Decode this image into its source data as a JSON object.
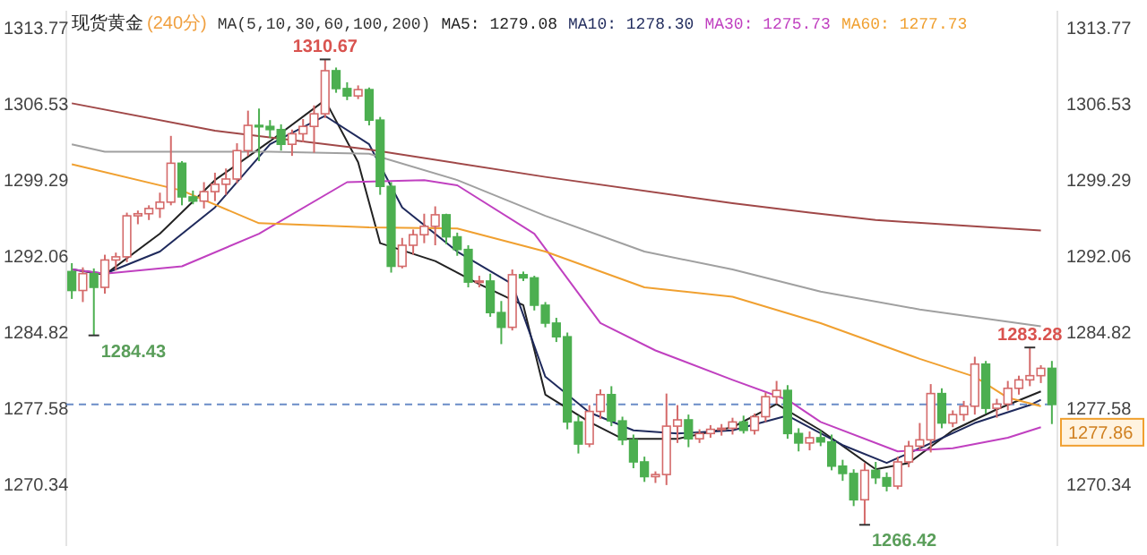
{
  "chart_data": {
    "type": "candlestick",
    "title": "现货黄金",
    "subtitle": "(240分)",
    "legend_title": "MA(5,10,30,60,100,200)",
    "legend": "top",
    "categories": [
      null,
      null,
      null,
      null,
      null,
      null,
      null,
      null,
      null,
      null,
      null,
      null,
      null,
      null,
      null,
      null,
      null,
      null,
      null,
      null,
      null,
      null,
      null,
      null,
      null,
      null,
      null,
      null,
      null,
      null,
      null,
      null,
      null,
      null,
      null,
      null,
      null,
      null,
      null,
      null,
      null,
      null,
      null,
      null,
      null,
      null,
      null,
      null,
      null,
      null,
      null,
      null,
      null,
      null,
      null,
      null,
      null,
      null,
      null,
      null,
      null,
      null,
      null,
      null,
      null,
      null,
      null,
      null,
      null,
      null,
      null,
      null,
      null,
      null,
      null,
      null,
      null,
      null,
      null,
      null,
      null,
      null,
      null,
      null,
      null,
      null,
      null,
      null,
      null,
      null
    ],
    "ohlc": [
      [
        1290.5,
        1291.3,
        1287.9,
        1288.7
      ],
      [
        1288.7,
        1290.9,
        1287.6,
        1290.3
      ],
      [
        1290.3,
        1290.8,
        1284.43,
        1289.0
      ],
      [
        1289.0,
        1292.1,
        1288.4,
        1291.6
      ],
      [
        1291.6,
        1292.3,
        1290.6,
        1291.9
      ],
      [
        1291.9,
        1296.1,
        1291.4,
        1295.8
      ],
      [
        1295.8,
        1296.3,
        1295.0,
        1296.0
      ],
      [
        1296.0,
        1296.8,
        1295.4,
        1296.5
      ],
      [
        1296.5,
        1298.0,
        1295.6,
        1297.1
      ],
      [
        1297.1,
        1303.4,
        1296.8,
        1300.8
      ],
      [
        1300.8,
        1301.0,
        1296.8,
        1297.6
      ],
      [
        1297.6,
        1298.2,
        1296.9,
        1297.2
      ],
      [
        1297.2,
        1299.0,
        1296.5,
        1298.1
      ],
      [
        1298.1,
        1299.9,
        1297.2,
        1298.8
      ],
      [
        1298.8,
        1300.3,
        1297.8,
        1299.3
      ],
      [
        1299.3,
        1302.7,
        1298.9,
        1302.0
      ],
      [
        1302.0,
        1305.8,
        1301.5,
        1304.4
      ],
      [
        1304.4,
        1306.0,
        1301.0,
        1304.3
      ],
      [
        1304.3,
        1304.9,
        1303.2,
        1304.0
      ],
      [
        1304.0,
        1304.5,
        1302.0,
        1302.6
      ],
      [
        1302.6,
        1304.0,
        1301.5,
        1303.6
      ],
      [
        1303.6,
        1305.0,
        1302.8,
        1304.3
      ],
      [
        1304.3,
        1306.3,
        1301.8,
        1305.5
      ],
      [
        1305.5,
        1310.67,
        1305.1,
        1309.6
      ],
      [
        1309.6,
        1309.9,
        1307.5,
        1307.9
      ],
      [
        1307.9,
        1308.5,
        1306.8,
        1307.2
      ],
      [
        1307.2,
        1308.2,
        1306.9,
        1307.8
      ],
      [
        1307.8,
        1308.0,
        1304.4,
        1304.9
      ],
      [
        1304.9,
        1305.2,
        1297.8,
        1298.6
      ],
      [
        1298.6,
        1299.0,
        1290.4,
        1291.0
      ],
      [
        1291.0,
        1293.7,
        1290.8,
        1293.0
      ],
      [
        1293.0,
        1294.5,
        1292.1,
        1294.0
      ],
      [
        1294.0,
        1296.0,
        1293.2,
        1294.8
      ],
      [
        1294.8,
        1296.7,
        1293.0,
        1295.9
      ],
      [
        1295.9,
        1296.0,
        1293.1,
        1293.8
      ],
      [
        1293.8,
        1294.2,
        1292.0,
        1292.6
      ],
      [
        1292.6,
        1293.0,
        1289.0,
        1289.5
      ],
      [
        1289.5,
        1290.1,
        1289.0,
        1289.6
      ],
      [
        1289.6,
        1290.3,
        1286.2,
        1286.6
      ],
      [
        1286.6,
        1287.7,
        1283.6,
        1285.2
      ],
      [
        1285.2,
        1290.7,
        1284.9,
        1290.2
      ],
      [
        1290.2,
        1290.5,
        1289.6,
        1289.9
      ],
      [
        1289.9,
        1290.1,
        1286.8,
        1287.3
      ],
      [
        1287.3,
        1287.6,
        1285.2,
        1285.6
      ],
      [
        1285.6,
        1286.1,
        1283.8,
        1284.3
      ],
      [
        1284.3,
        1284.7,
        1275.5,
        1276.2
      ],
      [
        1276.2,
        1276.8,
        1273.2,
        1274.1
      ],
      [
        1274.1,
        1277.8,
        1273.8,
        1277.2
      ],
      [
        1277.2,
        1279.3,
        1276.5,
        1278.8
      ],
      [
        1278.8,
        1279.6,
        1275.8,
        1276.3
      ],
      [
        1276.3,
        1276.7,
        1274.0,
        1274.5
      ],
      [
        1274.5,
        1275.0,
        1271.8,
        1272.4
      ],
      [
        1272.4,
        1272.9,
        1270.5,
        1271.0
      ],
      [
        1271.0,
        1271.5,
        1270.4,
        1271.2
      ],
      [
        1271.2,
        1278.9,
        1270.2,
        1275.8
      ],
      [
        1275.8,
        1277.8,
        1274.2,
        1276.4
      ],
      [
        1276.4,
        1276.9,
        1273.8,
        1274.6
      ],
      [
        1274.6,
        1275.5,
        1274.2,
        1275.1
      ],
      [
        1275.1,
        1275.9,
        1274.7,
        1275.5
      ],
      [
        1275.5,
        1276.0,
        1274.9,
        1275.6
      ],
      [
        1275.6,
        1276.6,
        1275.0,
        1276.2
      ],
      [
        1276.2,
        1276.8,
        1275.1,
        1275.4
      ],
      [
        1275.4,
        1277.0,
        1275.0,
        1276.7
      ],
      [
        1276.7,
        1279.0,
        1276.2,
        1278.6
      ],
      [
        1278.6,
        1280.1,
        1277.9,
        1279.2
      ],
      [
        1279.2,
        1279.7,
        1274.6,
        1275.1
      ],
      [
        1275.1,
        1275.6,
        1273.4,
        1274.2
      ],
      [
        1274.2,
        1275.3,
        1273.5,
        1274.7
      ],
      [
        1274.7,
        1275.4,
        1273.9,
        1274.3
      ],
      [
        1274.3,
        1275.0,
        1271.6,
        1272.0
      ],
      [
        1272.0,
        1272.6,
        1270.6,
        1271.3
      ],
      [
        1271.3,
        1271.7,
        1268.2,
        1268.8
      ],
      [
        1268.8,
        1272.3,
        1266.42,
        1271.6
      ],
      [
        1271.6,
        1272.4,
        1270.3,
        1270.9
      ],
      [
        1270.9,
        1271.4,
        1269.6,
        1270.1
      ],
      [
        1270.1,
        1272.9,
        1269.8,
        1272.4
      ],
      [
        1272.4,
        1274.4,
        1271.9,
        1273.9
      ],
      [
        1273.9,
        1276.1,
        1273.5,
        1274.5
      ],
      [
        1274.5,
        1279.8,
        1273.3,
        1278.9
      ],
      [
        1278.9,
        1279.4,
        1275.6,
        1276.1
      ],
      [
        1276.1,
        1277.3,
        1275.7,
        1276.9
      ],
      [
        1276.9,
        1278.2,
        1276.3,
        1277.7
      ],
      [
        1277.7,
        1282.4,
        1276.9,
        1281.7
      ],
      [
        1281.7,
        1282.0,
        1277.0,
        1277.5
      ],
      [
        1277.5,
        1278.4,
        1276.6,
        1277.9
      ],
      [
        1277.9,
        1280.1,
        1277.3,
        1279.4
      ],
      [
        1279.4,
        1280.6,
        1278.8,
        1280.2
      ],
      [
        1280.2,
        1283.28,
        1279.6,
        1280.6
      ],
      [
        1280.6,
        1281.6,
        1279.9,
        1281.3
      ],
      [
        1281.3,
        1282.0,
        1276.0,
        1277.86
      ]
    ],
    "series": [
      {
        "type": "line",
        "name": "MA5: 1279.08",
        "color": "#222222",
        "values": [
          1290.7,
          null,
          null,
          1290.2,
          null,
          null,
          null,
          null,
          1294.1,
          null,
          null,
          null,
          null,
          1299.2,
          null,
          null,
          null,
          null,
          1302.9,
          null,
          null,
          null,
          null,
          1306.8,
          null,
          null,
          1300.9,
          null,
          1293.2,
          null,
          null,
          null,
          null,
          1291.5,
          null,
          null,
          null,
          1289.3,
          null,
          null,
          null,
          1287.3,
          null,
          1278.8,
          null,
          null,
          null,
          1276.2,
          null,
          null,
          1274.6,
          null,
          null,
          null,
          null,
          1274.6,
          null,
          null,
          null,
          null,
          1275.7,
          null,
          null,
          null,
          1277.9,
          null,
          null,
          null,
          1275.4,
          null,
          null,
          null,
          null,
          1271.7,
          null,
          null,
          1272.3,
          null,
          null,
          null,
          1275.4,
          null,
          null,
          null,
          1277.4,
          null,
          null,
          null,
          1279.1,
          null
        ]
      },
      {
        "type": "line",
        "name": "MA10: 1278.30",
        "color": "#1f2a5c",
        "values": [
          1290.7,
          null,
          null,
          1290.3,
          null,
          null,
          null,
          null,
          1292.4,
          null,
          null,
          null,
          null,
          1296.6,
          null,
          null,
          null,
          null,
          1302.6,
          null,
          null,
          null,
          null,
          1305.3,
          null,
          null,
          null,
          1302.6,
          null,
          null,
          1296.6,
          null,
          null,
          null,
          null,
          1292.4,
          null,
          null,
          null,
          null,
          1289.3,
          null,
          null,
          1280.5,
          null,
          null,
          null,
          1277.1,
          null,
          null,
          null,
          1275.4,
          null,
          null,
          null,
          1275.1,
          null,
          null,
          null,
          null,
          1275.4,
          null,
          null,
          null,
          null,
          1276.8,
          null,
          null,
          null,
          null,
          1274.0,
          null,
          null,
          null,
          1272.3,
          null,
          null,
          1273.7,
          null,
          null,
          null,
          null,
          1276.1,
          null,
          null,
          null,
          null,
          1277.8,
          1278.3,
          null
        ]
      },
      {
        "type": "line",
        "name": "MA30: 1275.73",
        "color": "#c040c0",
        "values": [
          1290.7,
          null,
          null,
          1290.3,
          null,
          null,
          null,
          null,
          null,
          null,
          1291.0,
          null,
          null,
          null,
          null,
          null,
          null,
          1294.1,
          null,
          null,
          null,
          null,
          null,
          null,
          null,
          1299.0,
          null,
          null,
          null,
          null,
          null,
          null,
          1299.2,
          null,
          null,
          1298.7,
          null,
          null,
          null,
          null,
          null,
          null,
          1294.1,
          null,
          null,
          null,
          null,
          null,
          1285.6,
          null,
          null,
          null,
          null,
          1283.0,
          null,
          null,
          null,
          null,
          null,
          null,
          1280.2,
          null,
          null,
          null,
          null,
          1278.3,
          null,
          null,
          1276.2,
          null,
          null,
          null,
          null,
          null,
          null,
          1273.4,
          null,
          null,
          null,
          null,
          1273.7,
          null,
          null,
          null,
          null,
          1274.7,
          null,
          null,
          1275.7,
          null
        ]
      },
      {
        "type": "line",
        "name": "MA60: 1277.73",
        "color": "#f0a030",
        "values": [
          1300.7,
          null,
          null,
          null,
          null,
          null,
          null,
          null,
          null,
          null,
          1298.2,
          null,
          null,
          null,
          null,
          null,
          null,
          1295.1,
          null,
          null,
          null,
          null,
          null,
          null,
          null,
          null,
          null,
          1294.7,
          null,
          null,
          null,
          null,
          null,
          null,
          null,
          1294.6,
          null,
          null,
          null,
          null,
          null,
          null,
          null,
          1292.4,
          null,
          null,
          null,
          null,
          null,
          null,
          null,
          null,
          1289.0,
          null,
          null,
          null,
          null,
          null,
          null,
          null,
          1288.1,
          null,
          null,
          null,
          null,
          null,
          null,
          null,
          1285.6,
          null,
          null,
          null,
          null,
          null,
          null,
          null,
          null,
          1282.2,
          null,
          null,
          null,
          null,
          1280.5,
          null,
          null,
          1278.5,
          null,
          null,
          1277.7,
          null
        ]
      },
      {
        "type": "line",
        "color": "#a0a0a0",
        "values": [
          1302.6,
          null,
          null,
          1301.9,
          null,
          null,
          null,
          null,
          null,
          null,
          null,
          null,
          null,
          null,
          null,
          null,
          null,
          null,
          1301.9,
          null,
          null,
          null,
          null,
          null,
          null,
          null,
          null,
          1301.7,
          null,
          null,
          null,
          null,
          null,
          null,
          null,
          1299.2,
          null,
          null,
          null,
          null,
          null,
          null,
          null,
          1295.8,
          null,
          null,
          null,
          null,
          null,
          null,
          null,
          null,
          1292.4,
          null,
          null,
          null,
          null,
          null,
          null,
          null,
          1290.7,
          null,
          null,
          null,
          null,
          null,
          null,
          null,
          1288.6,
          null,
          null,
          null,
          null,
          null,
          null,
          null,
          null,
          1286.9,
          null,
          null,
          null,
          null,
          null,
          null,
          null,
          null,
          null,
          null,
          1285.3,
          null
        ]
      },
      {
        "type": "line",
        "color": "#a04848",
        "values": [
          1306.5,
          null,
          null,
          null,
          null,
          null,
          null,
          null,
          null,
          null,
          null,
          null,
          null,
          1303.9,
          null,
          null,
          null,
          null,
          null,
          null,
          null,
          null,
          null,
          null,
          null,
          null,
          null,
          1302.1,
          null,
          null,
          null,
          null,
          null,
          null,
          null,
          null,
          null,
          null,
          null,
          null,
          null,
          null,
          null,
          1299.5,
          null,
          null,
          null,
          null,
          null,
          null,
          null,
          null,
          null,
          null,
          null,
          null,
          null,
          null,
          null,
          null,
          1297.0,
          null,
          null,
          null,
          null,
          null,
          null,
          1296.1,
          null,
          null,
          null,
          null,
          null,
          1295.4,
          null,
          null,
          null,
          null,
          null,
          null,
          null,
          null,
          null,
          null,
          null,
          null,
          null,
          null,
          1294.4,
          null
        ]
      }
    ],
    "ylim": [
      1264.4,
      1315.3
    ],
    "yticks": [
      1270.34,
      1277.58,
      1284.82,
      1292.06,
      1299.29,
      1306.53,
      1313.77
    ],
    "y2lim": [
      1264.4,
      1315.3
    ],
    "y2ticks": [
      1270.34,
      1277.58,
      1284.82,
      1292.06,
      1299.29,
      1306.53,
      1313.77
    ],
    "ref_lines": [
      {
        "axis": "y2",
        "value": 1277.86,
        "label": "1277.86",
        "color": "#6a8cc7",
        "line_style": "dashed"
      }
    ],
    "annotations": [
      {
        "text": "1310.67",
        "y": 1310.67
      },
      "1284.43",
      {
        "text": "1283.28",
        "y": 1283.28
      },
      "1266.42"
    ]
  }
}
